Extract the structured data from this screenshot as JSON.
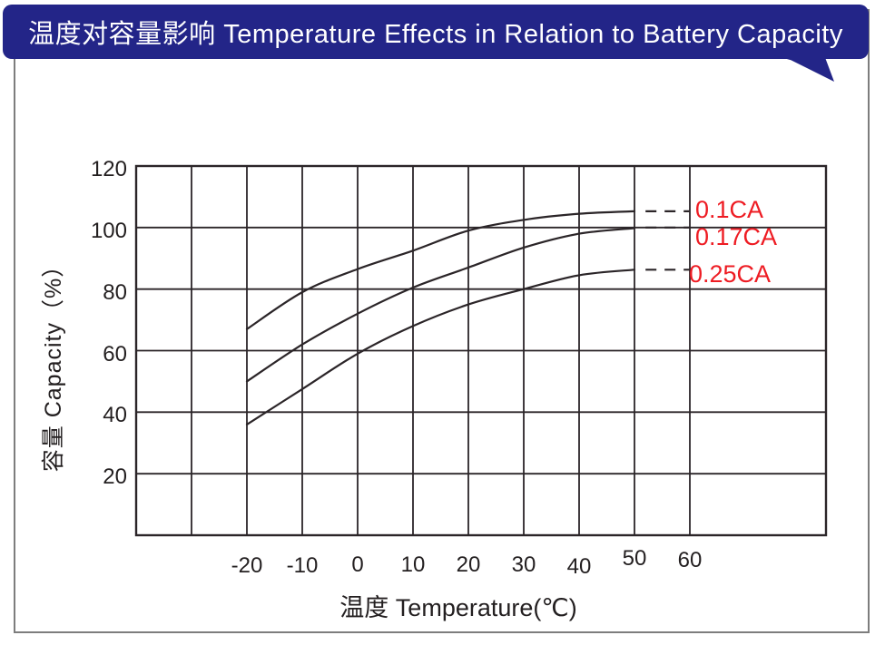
{
  "header": {
    "title": "温度对容量影响  Temperature Effects in Relation to Battery Capacity"
  },
  "colors": {
    "banner_bg": "#232588",
    "banner_text": "#ffffff",
    "series_label": "#ee1c23",
    "line": "#2b2528",
    "text": "#231f20",
    "frame_border": "#7d7d7d"
  },
  "chart_data": {
    "type": "line",
    "title": "温度对容量影响 Temperature Effects in Relation to Battery Capacity",
    "xlabel": "温度  Temperature(℃)",
    "ylabel": "容量  Capacity（%）",
    "x": [
      -20,
      -10,
      0,
      10,
      20,
      30,
      40,
      50
    ],
    "series": [
      {
        "name": "0.1CA",
        "values": [
          67,
          79,
          86.5,
          92.5,
          99,
          102.5,
          104.5,
          105.3
        ],
        "dash_value": 105.3
      },
      {
        "name": "0.17CA",
        "values": [
          50,
          62,
          72,
          80.5,
          87,
          93.5,
          98,
          99.8
        ],
        "dash_value": 100
      },
      {
        "name": "0.25CA",
        "values": [
          36,
          47.5,
          59,
          68,
          75,
          80,
          84.5,
          86.3
        ],
        "dash_value": 86.3
      }
    ],
    "dash_x_range": [
      52,
      60
    ],
    "x_ticks": [
      -20,
      -10,
      0,
      10,
      20,
      30,
      40,
      50,
      60
    ],
    "x_tick_dy": [
      2,
      2,
      1,
      1,
      1,
      1,
      3,
      -6,
      -4
    ],
    "y_ticks": [
      20,
      40,
      60,
      80,
      100,
      120
    ],
    "grid_x_lines": [
      -30,
      -20,
      -10,
      0,
      10,
      20,
      30,
      40,
      50,
      60
    ],
    "grid_y_lines": [
      20,
      40,
      60,
      80,
      100
    ],
    "xlim": [
      -40,
      60
    ],
    "ylim": [
      0,
      120
    ],
    "grid": "on",
    "legend_position": "right-inline"
  }
}
